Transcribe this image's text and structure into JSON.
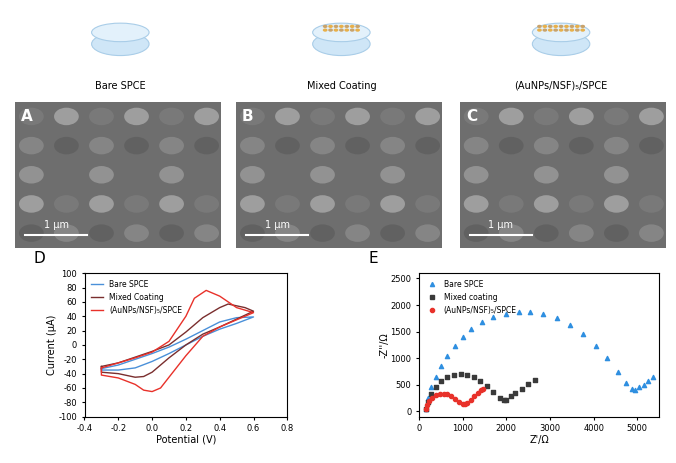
{
  "schematic": {
    "labels": [
      "Bare SPCE",
      "Mixed Coating",
      "(AuNPs/NSF)₅/SPCE"
    ]
  },
  "images": [
    {
      "panel": "A",
      "scale_bar": "1 μm"
    },
    {
      "panel": "B",
      "scale_bar": "1 μm"
    },
    {
      "panel": "C",
      "scale_bar": "1 μm"
    }
  ],
  "chart_data": [
    {
      "panel": "D",
      "type": "line",
      "x_label": "Potential (V)",
      "y_label": "Current (μA)",
      "xlim": [
        -0.4,
        0.8
      ],
      "xticks": [
        -0.4,
        -0.2,
        0.0,
        0.2,
        0.4,
        0.6,
        0.8
      ],
      "ylim": [
        -100,
        100
      ],
      "yticks": [
        -100,
        -80,
        -60,
        -40,
        -20,
        0,
        20,
        40,
        60,
        80,
        100
      ],
      "legend": "upper left",
      "series": [
        {
          "name": "Bare SPCE",
          "color": "#4a90d9",
          "x": [
            -0.3,
            -0.2,
            -0.1,
            0.0,
            0.1,
            0.2,
            0.3,
            0.4,
            0.5,
            0.6,
            0.6,
            0.5,
            0.4,
            0.3,
            0.2,
            0.1,
            0.0,
            -0.1,
            -0.2,
            -0.3,
            -0.3
          ],
          "values": [
            -33,
            -28,
            -20,
            -12,
            -3,
            8,
            20,
            32,
            38,
            39,
            39,
            30,
            22,
            12,
            0,
            -12,
            -23,
            -32,
            -35,
            -35,
            -33
          ]
        },
        {
          "name": "Mixed Coating",
          "color": "#7a2e2e",
          "x": [
            -0.3,
            -0.2,
            -0.1,
            0.0,
            0.1,
            0.2,
            0.3,
            0.4,
            0.45,
            0.55,
            0.6,
            0.6,
            0.5,
            0.4,
            0.3,
            0.2,
            0.1,
            0.0,
            -0.05,
            -0.1,
            -0.2,
            -0.3,
            -0.3
          ],
          "values": [
            -30,
            -25,
            -17,
            -9,
            0,
            18,
            38,
            52,
            57,
            52,
            47,
            47,
            36,
            25,
            15,
            0,
            -18,
            -38,
            -44,
            -45,
            -40,
            -38,
            -30
          ]
        },
        {
          "name": "(AuNPs/NSF)₅/SPCE",
          "color": "#e8312a",
          "x": [
            -0.3,
            -0.2,
            -0.1,
            0.0,
            0.1,
            0.2,
            0.25,
            0.32,
            0.4,
            0.5,
            0.6,
            0.6,
            0.5,
            0.4,
            0.3,
            0.2,
            0.1,
            0.05,
            0.0,
            -0.05,
            -0.1,
            -0.2,
            -0.3,
            -0.3
          ],
          "values": [
            -32,
            -25,
            -18,
            -10,
            5,
            40,
            65,
            76,
            68,
            52,
            45,
            45,
            35,
            25,
            12,
            -15,
            -45,
            -60,
            -65,
            -63,
            -55,
            -46,
            -42,
            -32
          ]
        }
      ]
    },
    {
      "panel": "E",
      "type": "scatter",
      "x_label": "Z'/Ω",
      "y_label": "-Z''/Ω",
      "xlim": [
        0,
        5500
      ],
      "xticks": [
        0,
        1000,
        2000,
        3000,
        4000,
        5000
      ],
      "ylim": [
        -100,
        2600
      ],
      "yticks": [
        0,
        500,
        1000,
        1500,
        2000,
        2500
      ],
      "legend": "upper left",
      "series": [
        {
          "name": "Bare SPCE",
          "color": "#2f8fe0",
          "marker": "triangle",
          "x": [
            150,
            200,
            280,
            380,
            500,
            650,
            820,
            1000,
            1200,
            1450,
            1700,
            2000,
            2300,
            2550,
            2850,
            3150,
            3450,
            3750,
            4050,
            4300,
            4550,
            4750,
            4880,
            4950,
            5050,
            5150,
            5250,
            5350
          ],
          "values": [
            50,
            250,
            450,
            650,
            850,
            1050,
            1230,
            1400,
            1550,
            1680,
            1780,
            1840,
            1870,
            1870,
            1840,
            1760,
            1630,
            1450,
            1230,
            1000,
            750,
            530,
            420,
            410,
            450,
            500,
            570,
            650
          ]
        },
        {
          "name": "Mixed coating",
          "color": "#3a3a3a",
          "marker": "square",
          "x": [
            150,
            200,
            280,
            380,
            500,
            650,
            800,
            950,
            1100,
            1250,
            1400,
            1550,
            1700,
            1850,
            1950,
            2000,
            2100,
            2200,
            2350,
            2500,
            2650
          ],
          "values": [
            50,
            180,
            330,
            460,
            570,
            650,
            690,
            700,
            690,
            650,
            580,
            480,
            370,
            260,
            210,
            210,
            280,
            350,
            430,
            510,
            590
          ]
        },
        {
          "name": "(AuNPs/NSF)₅/SPCE",
          "color": "#e8312a",
          "marker": "circle",
          "x": [
            150,
            180,
            230,
            300,
            380,
            470,
            560,
            650,
            740,
            830,
            920,
            1000,
            1050,
            1100,
            1180,
            1260,
            1340,
            1420,
            1470
          ],
          "values": [
            40,
            120,
            200,
            260,
            300,
            325,
            330,
            320,
            290,
            240,
            180,
            140,
            130,
            150,
            220,
            290,
            350,
            400,
            430
          ]
        }
      ]
    }
  ]
}
